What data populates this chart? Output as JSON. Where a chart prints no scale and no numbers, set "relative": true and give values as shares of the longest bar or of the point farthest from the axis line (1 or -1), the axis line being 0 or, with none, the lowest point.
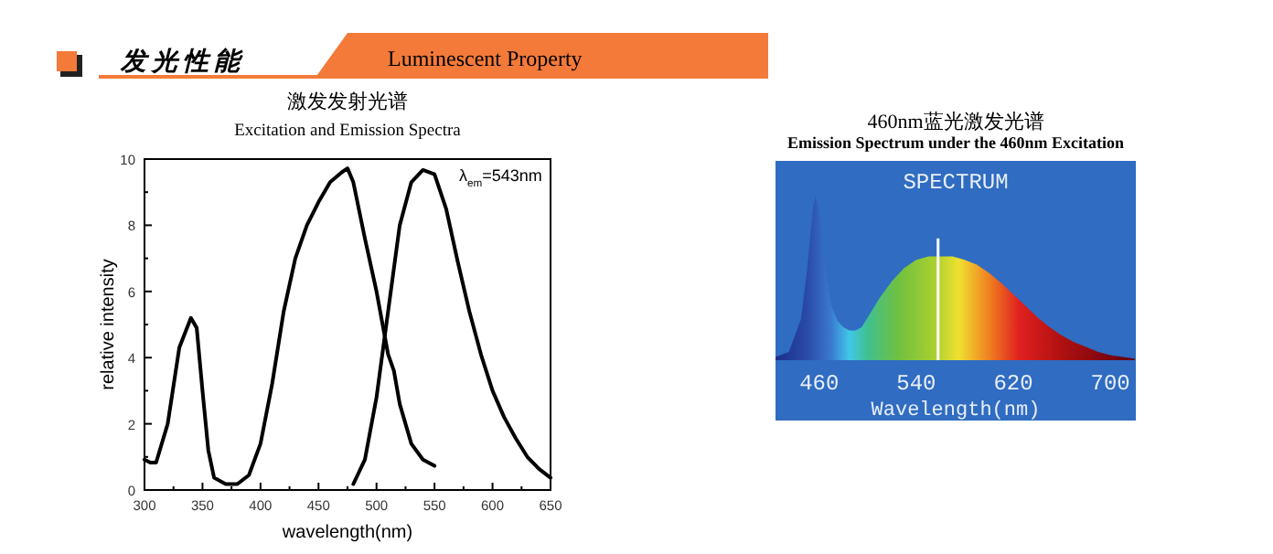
{
  "chart_data": [
    {
      "type": "line",
      "title": "激发发射光谱",
      "subtitle": "Excitation and Emission Spectra",
      "xlabel": "wavelength(nm)",
      "ylabel": "relative intensity",
      "xlim": [
        300,
        650
      ],
      "ylim": [
        0,
        10
      ],
      "xticks": [
        300,
        350,
        400,
        450,
        500,
        550,
        600,
        650
      ],
      "yticks": [
        0,
        2,
        4,
        6,
        8,
        10
      ],
      "annotations": [
        "发光性能",
        "Luminescent Property",
        "λ$_{em}$=543nm"
      ],
      "series": [
        {
          "color": "#000000",
          "x": [
            300,
            305,
            310,
            320,
            330,
            340,
            345,
            350,
            355,
            360,
            370,
            380,
            390,
            400,
            410,
            420,
            430,
            440,
            450,
            460,
            470,
            475,
            480,
            490,
            500,
            510,
            515,
            520,
            530,
            540,
            550
          ],
          "values": [
            0.92,
            0.83,
            0.83,
            2.0,
            4.3,
            5.2,
            4.9,
            3.0,
            1.2,
            0.37,
            0.18,
            0.18,
            0.45,
            1.4,
            3.2,
            5.4,
            7.0,
            8.0,
            8.7,
            9.3,
            9.6,
            9.72,
            9.3,
            7.6,
            6.0,
            4.1,
            3.6,
            2.6,
            1.4,
            0.92,
            0.73
          ]
        },
        {
          "color": "#000000",
          "x": [
            480,
            490,
            500,
            510,
            520,
            530,
            540,
            550,
            560,
            570,
            580,
            590,
            600,
            610,
            620,
            630,
            640,
            650
          ],
          "values": [
            0.18,
            0.92,
            2.8,
            5.4,
            8.0,
            9.3,
            9.67,
            9.54,
            8.5,
            6.9,
            5.4,
            4.1,
            3.0,
            2.2,
            1.56,
            1.0,
            0.64,
            0.37
          ]
        }
      ]
    },
    {
      "type": "area",
      "relative": true,
      "title": "460nm蓝光激发光谱",
      "subtitle": "Emission Spectrum under the 460nm Excitation",
      "xlabel": "Wavelength(nm)",
      "xlim": [
        424,
        721
      ],
      "xticks": [
        460,
        540,
        620,
        700
      ],
      "annotations": [
        "SPECTRUM"
      ],
      "ref_lines": [
        {
          "axis": "x",
          "value": 558,
          "color": "#ffffff"
        }
      ],
      "series": [
        {
          "x": [
            424,
            435,
            445,
            450,
            455,
            457,
            460,
            465,
            470,
            475,
            480,
            485,
            490,
            495,
            500,
            510,
            520,
            530,
            540,
            550,
            560,
            570,
            580,
            590,
            600,
            610,
            620,
            630,
            640,
            650,
            660,
            670,
            680,
            690,
            700,
            720
          ],
          "values": [
            0.02,
            0.05,
            0.25,
            0.55,
            0.93,
            1.0,
            0.9,
            0.55,
            0.33,
            0.24,
            0.2,
            0.18,
            0.18,
            0.2,
            0.26,
            0.38,
            0.48,
            0.56,
            0.61,
            0.63,
            0.63,
            0.63,
            0.61,
            0.58,
            0.53,
            0.47,
            0.4,
            0.33,
            0.26,
            0.2,
            0.15,
            0.11,
            0.08,
            0.05,
            0.03,
            0.01
          ]
        }
      ]
    }
  ]
}
